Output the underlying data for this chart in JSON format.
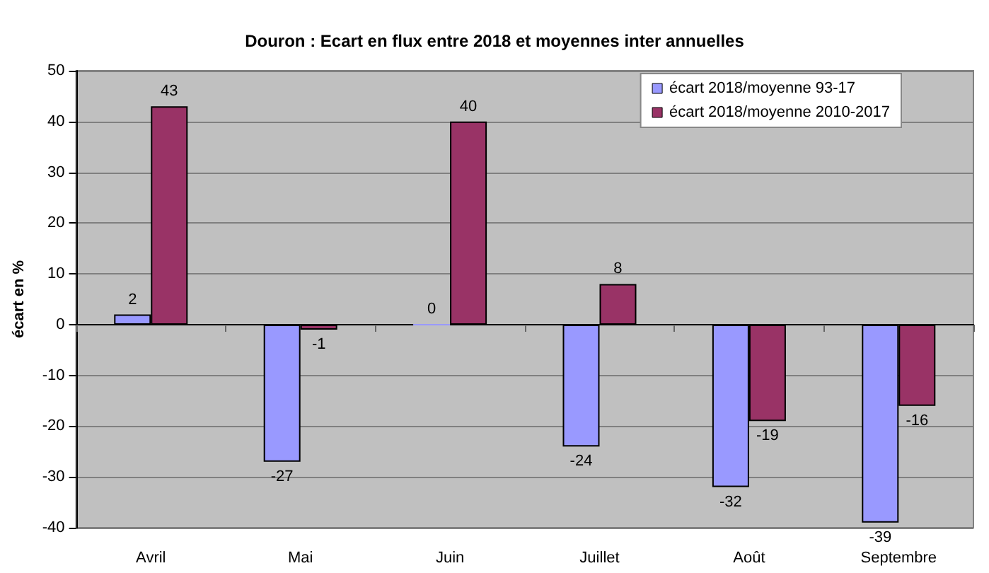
{
  "chart_data": {
    "type": "bar",
    "title": "Douron : Ecart en flux entre 2018 et moyennes inter annuelles",
    "ylabel": "écart en %",
    "categories": [
      "Avril",
      "Mai",
      "Juin",
      "Juillet",
      "Août",
      "Septembre"
    ],
    "series": [
      {
        "name": "écart 2018/moyenne 93-17",
        "color": "#9999ff",
        "values": [
          2,
          -27,
          0,
          -24,
          -32,
          -39
        ]
      },
      {
        "name": "écart 2018/moyenne 2010-2017",
        "color": "#993366",
        "values": [
          43,
          -1,
          40,
          8,
          -19,
          -16
        ]
      }
    ],
    "ylim": [
      -40,
      50
    ],
    "yticks": [
      -40,
      -30,
      -20,
      -10,
      0,
      10,
      20,
      30,
      40,
      50
    ],
    "grid": "y",
    "legend": "top right",
    "data_labels": true
  }
}
